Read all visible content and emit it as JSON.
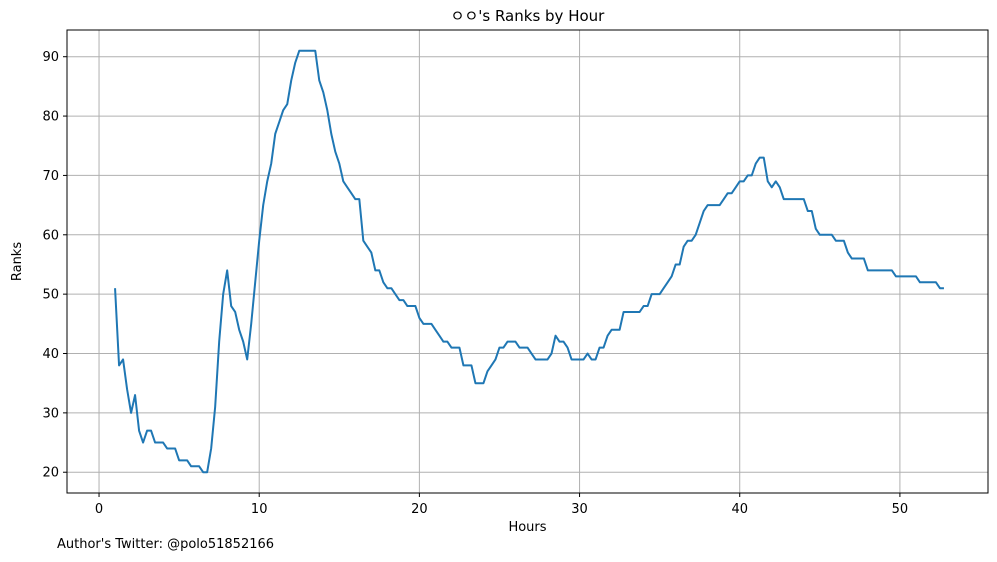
{
  "chart_data": {
    "type": "line",
    "title": "ㅇㅇ's Ranks by Hour",
    "xlabel": "Hours",
    "ylabel": "Ranks",
    "xlim": [
      -2.0,
      55.5
    ],
    "ylim": [
      16.5,
      94.5
    ],
    "xticks": [
      0,
      10,
      20,
      30,
      40,
      50
    ],
    "yticks": [
      20,
      30,
      40,
      50,
      60,
      70,
      80,
      90
    ],
    "grid": true,
    "color": "#1f77b4",
    "series": [
      {
        "name": "Ranks",
        "x": [
          1.0,
          1.25,
          1.5,
          1.75,
          2.0,
          2.25,
          2.5,
          2.75,
          3.0,
          3.25,
          3.5,
          3.75,
          4.0,
          4.25,
          4.5,
          4.75,
          5.0,
          5.25,
          5.5,
          5.75,
          6.0,
          6.25,
          6.5,
          6.75,
          7.0,
          7.25,
          7.5,
          7.75,
          8.0,
          8.25,
          8.5,
          8.75,
          9.0,
          9.25,
          9.5,
          9.75,
          10.0,
          10.25,
          10.5,
          10.75,
          11.0,
          11.25,
          11.5,
          11.75,
          12.0,
          12.25,
          12.5,
          12.75,
          13.0,
          13.25,
          13.5,
          13.75,
          14.0,
          14.25,
          14.5,
          14.75,
          15.0,
          15.25,
          15.5,
          15.75,
          16.0,
          16.25,
          16.5,
          16.75,
          17.0,
          17.25,
          17.5,
          17.75,
          18.0,
          18.25,
          18.5,
          18.75,
          19.0,
          19.25,
          19.5,
          19.75,
          20.0,
          20.25,
          20.5,
          20.75,
          21.0,
          21.25,
          21.5,
          21.75,
          22.0,
          22.25,
          22.5,
          22.75,
          23.0,
          23.25,
          23.5,
          23.75,
          24.0,
          24.25,
          24.5,
          24.75,
          25.0,
          25.25,
          25.5,
          25.75,
          26.0,
          26.25,
          26.5,
          26.75,
          27.0,
          27.25,
          27.5,
          27.75,
          28.0,
          28.25,
          28.5,
          28.75,
          29.0,
          29.25,
          29.5,
          29.75,
          30.0,
          30.25,
          30.5,
          30.75,
          31.0,
          31.25,
          31.5,
          31.75,
          32.0,
          32.25,
          32.5,
          32.75,
          33.0,
          33.25,
          33.5,
          33.75,
          34.0,
          34.25,
          34.5,
          34.75,
          35.0,
          35.25,
          35.5,
          35.75,
          36.0,
          36.25,
          36.5,
          36.75,
          37.0,
          37.25,
          37.5,
          37.75,
          38.0,
          38.25,
          38.5,
          38.75,
          39.0,
          39.25,
          39.5,
          39.75,
          40.0,
          40.25,
          40.5,
          40.75,
          41.0,
          41.25,
          41.5,
          41.75,
          42.0,
          42.25,
          42.5,
          42.75,
          43.0,
          43.25,
          43.5,
          43.75,
          44.0,
          44.25,
          44.5,
          44.75,
          45.0,
          45.25,
          45.5,
          45.75,
          46.0,
          46.25,
          46.5,
          46.75,
          47.0,
          47.25,
          47.5,
          47.75,
          48.0,
          48.25,
          48.5,
          48.75,
          49.0,
          49.25,
          49.5,
          49.75,
          50.0,
          50.25,
          50.5,
          50.75,
          51.0,
          51.25,
          51.5,
          51.75,
          52.0,
          52.25,
          52.5,
          52.75
        ],
        "y": [
          51,
          38,
          39,
          34,
          30,
          33,
          27,
          25,
          27,
          27,
          25,
          25,
          25,
          24,
          24,
          24,
          22,
          22,
          22,
          21,
          21,
          21,
          20,
          20,
          24,
          31,
          42,
          50,
          54,
          48,
          47,
          44,
          42,
          39,
          45,
          52,
          59,
          65,
          69,
          72,
          77,
          79,
          81,
          82,
          86,
          89,
          91,
          91,
          91,
          91,
          91,
          86,
          84,
          81,
          77,
          74,
          72,
          69,
          68,
          67,
          66,
          66,
          59,
          58,
          57,
          54,
          54,
          52,
          51,
          51,
          50,
          49,
          49,
          48,
          48,
          48,
          46,
          45,
          45,
          45,
          44,
          43,
          42,
          42,
          41,
          41,
          41,
          38,
          38,
          38,
          35,
          35,
          35,
          37,
          38,
          39,
          41,
          41,
          42,
          42,
          42,
          41,
          41,
          41,
          40,
          39,
          39,
          39,
          39,
          40,
          43,
          42,
          42,
          41,
          39,
          39,
          39,
          39,
          40,
          39,
          39,
          41,
          41,
          43,
          44,
          44,
          44,
          47,
          47,
          47,
          47,
          47,
          48,
          48,
          50,
          50,
          50,
          51,
          52,
          53,
          55,
          55,
          58,
          59,
          59,
          60,
          62,
          64,
          65,
          65,
          65,
          65,
          66,
          67,
          67,
          68,
          69,
          69,
          70,
          70,
          72,
          73,
          73,
          69,
          68,
          69,
          68,
          66,
          66,
          66,
          66,
          66,
          66,
          64,
          64,
          61,
          60,
          60,
          60,
          60,
          59,
          59,
          59,
          57,
          56,
          56,
          56,
          56,
          54,
          54,
          54,
          54,
          54,
          54,
          54,
          53,
          53,
          53,
          53,
          53,
          53,
          52,
          52,
          52,
          52,
          52,
          51,
          51
        ]
      }
    ]
  },
  "footer": {
    "credit": "Author's Twitter: @polo51852166"
  }
}
